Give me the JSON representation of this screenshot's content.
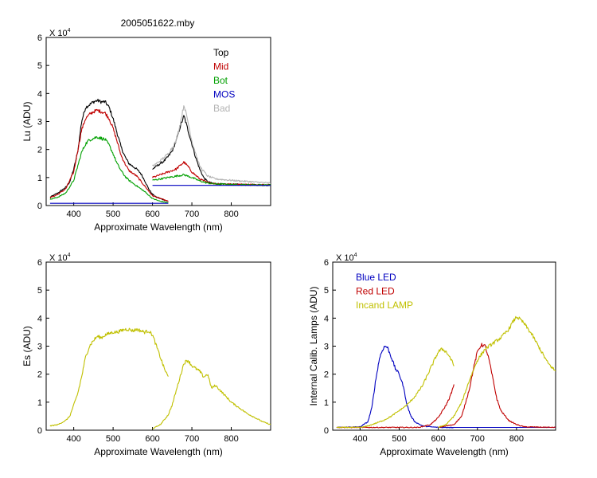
{
  "figure_title": "2005051622.mby",
  "chart_data": [
    {
      "id": "lu",
      "type": "line",
      "xlabel": "Approximate Wavelength (nm)",
      "ylabel": "Lu (ADU)",
      "multiplier": "X 10",
      "multiplier_exp": "4",
      "xlim": [
        330,
        900
      ],
      "ylim": [
        0,
        6
      ],
      "xticks": [
        400,
        500,
        600,
        700,
        800
      ],
      "xtick_labels": [
        "400",
        "500",
        "600",
        "700",
        "800"
      ],
      "yticks": [
        0,
        1,
        2,
        3,
        4,
        5,
        6
      ],
      "ytick_labels": [
        "0",
        "1",
        "2",
        "3",
        "4",
        "5",
        "6"
      ],
      "legend": "top-right",
      "series": [
        {
          "name": "Top",
          "color": "#000000",
          "segments": [
            {
              "x": [
                340,
                360,
                380,
                390,
                400,
                410,
                420,
                430,
                440,
                450,
                460,
                470,
                480,
                490,
                500,
                510,
                520,
                530,
                540,
                550,
                560,
                570,
                580,
                590,
                600,
                610,
                620,
                630,
                640
              ],
              "y": [
                0.3,
                0.45,
                0.65,
                0.85,
                1.3,
                1.9,
                3.0,
                3.5,
                3.6,
                3.7,
                3.75,
                3.7,
                3.7,
                3.5,
                3.1,
                2.6,
                2.1,
                1.75,
                1.5,
                1.4,
                1.3,
                1.15,
                0.9,
                0.6,
                0.4,
                0.3,
                0.25,
                0.2,
                0.15
              ]
            },
            {
              "x": [
                600,
                610,
                620,
                630,
                640,
                650,
                660,
                670,
                680,
                690,
                700,
                710,
                720,
                730,
                740,
                750,
                760,
                780,
                800,
                820,
                840,
                860,
                880,
                900
              ],
              "y": [
                1.3,
                1.4,
                1.5,
                1.6,
                1.75,
                1.95,
                2.3,
                2.8,
                3.2,
                2.7,
                2.2,
                1.7,
                1.3,
                1.0,
                0.85,
                0.8,
                0.78,
                0.76,
                0.75,
                0.75,
                0.74,
                0.74,
                0.73,
                0.73
              ]
            }
          ]
        },
        {
          "name": "Mid",
          "color": "#c00000",
          "segments": [
            {
              "x": [
                340,
                360,
                380,
                400,
                420,
                430,
                440,
                450,
                460,
                470,
                480,
                490,
                500,
                510,
                520,
                530,
                540,
                560,
                580,
                600,
                620,
                640
              ],
              "y": [
                0.28,
                0.4,
                0.6,
                1.2,
                2.7,
                3.1,
                3.25,
                3.35,
                3.4,
                3.35,
                3.3,
                3.1,
                2.75,
                2.3,
                1.8,
                1.5,
                1.25,
                1.05,
                0.7,
                0.35,
                0.25,
                0.15
              ]
            },
            {
              "x": [
                600,
                620,
                640,
                660,
                680,
                690,
                700,
                720,
                740,
                760,
                800,
                850,
                900
              ],
              "y": [
                1.0,
                1.1,
                1.2,
                1.3,
                1.55,
                1.4,
                1.2,
                0.95,
                0.82,
                0.78,
                0.76,
                0.75,
                0.74
              ]
            }
          ]
        },
        {
          "name": "Bot",
          "color": "#00a000",
          "segments": [
            {
              "x": [
                340,
                360,
                380,
                400,
                420,
                430,
                440,
                450,
                460,
                470,
                480,
                490,
                500,
                510,
                520,
                530,
                540,
                560,
                580,
                600,
                620,
                640
              ],
              "y": [
                0.22,
                0.3,
                0.45,
                0.9,
                1.9,
                2.2,
                2.35,
                2.4,
                2.45,
                2.4,
                2.35,
                2.15,
                1.85,
                1.5,
                1.25,
                1.05,
                0.9,
                0.7,
                0.5,
                0.25,
                0.15,
                0.1
              ]
            },
            {
              "x": [
                600,
                620,
                640,
                660,
                680,
                700,
                720,
                740,
                760,
                800,
                850,
                900
              ],
              "y": [
                0.9,
                0.95,
                1.0,
                1.05,
                1.1,
                1.0,
                0.88,
                0.8,
                0.77,
                0.75,
                0.74,
                0.73
              ]
            }
          ]
        },
        {
          "name": "MOS",
          "color": "#0000c0",
          "segments": [
            {
              "x": [
                340,
                640
              ],
              "y": [
                0.08,
                0.08
              ]
            },
            {
              "x": [
                600,
                900
              ],
              "y": [
                0.72,
                0.72
              ]
            }
          ]
        },
        {
          "name": "Bad",
          "color": "#b4b4b4",
          "segments": [
            {
              "x": [
                600,
                620,
                640,
                660,
                670,
                680,
                690,
                700,
                720,
                740,
                760,
                800,
                850,
                900
              ],
              "y": [
                1.4,
                1.6,
                1.85,
                2.3,
                2.9,
                3.6,
                3.0,
                2.3,
                1.4,
                1.05,
                0.95,
                0.9,
                0.85,
                0.8
              ]
            }
          ]
        }
      ]
    },
    {
      "id": "es",
      "type": "line",
      "xlabel": "Approximate Wavelength (nm)",
      "ylabel": "Es (ADU)",
      "multiplier": "X 10",
      "multiplier_exp": "4",
      "xlim": [
        330,
        900
      ],
      "ylim": [
        0,
        6
      ],
      "xticks": [
        400,
        500,
        600,
        700,
        800
      ],
      "xtick_labels": [
        "400",
        "500",
        "600",
        "700",
        "800"
      ],
      "yticks": [
        0,
        1,
        2,
        3,
        4,
        5,
        6
      ],
      "ytick_labels": [
        "0",
        "1",
        "2",
        "3",
        "4",
        "5",
        "6"
      ],
      "series": [
        {
          "name": "",
          "color": "#c0c000",
          "segments": [
            {
              "x": [
                340,
                360,
                380,
                390,
                400,
                410,
                420,
                430,
                440,
                450,
                460,
                470,
                480,
                490,
                500,
                510,
                520,
                530,
                540,
                550,
                560,
                570,
                580,
                590,
                600,
                610,
                620,
                630,
                640
              ],
              "y": [
                0.15,
                0.2,
                0.35,
                0.5,
                0.9,
                1.3,
                1.9,
                2.6,
                3.0,
                3.2,
                3.35,
                3.3,
                3.4,
                3.45,
                3.5,
                3.5,
                3.55,
                3.6,
                3.6,
                3.55,
                3.6,
                3.55,
                3.5,
                3.55,
                3.4,
                3.0,
                2.6,
                2.2,
                1.9
              ]
            },
            {
              "x": [
                600,
                620,
                640,
                650,
                660,
                670,
                680,
                690,
                700,
                710,
                720,
                730,
                740,
                750,
                760,
                780,
                800,
                820,
                840,
                860,
                880,
                900
              ],
              "y": [
                0.05,
                0.2,
                0.55,
                0.9,
                1.4,
                1.9,
                2.4,
                2.5,
                2.3,
                2.2,
                2.1,
                1.9,
                2.0,
                1.5,
                1.6,
                1.3,
                1.0,
                0.8,
                0.6,
                0.45,
                0.3,
                0.2
              ]
            }
          ]
        }
      ]
    },
    {
      "id": "calib",
      "type": "line",
      "xlabel": "Approximate Wavelength (nm)",
      "ylabel": "Internal Calib. Lamps (ADU)",
      "multiplier": "X 10",
      "multiplier_exp": "4",
      "xlim": [
        330,
        900
      ],
      "ylim": [
        0,
        6
      ],
      "xticks": [
        400,
        500,
        600,
        700,
        800
      ],
      "xtick_labels": [
        "400",
        "500",
        "600",
        "700",
        "800"
      ],
      "yticks": [
        0,
        1,
        2,
        3,
        4,
        5,
        6
      ],
      "ytick_labels": [
        "0",
        "1",
        "2",
        "3",
        "4",
        "5",
        "6"
      ],
      "legend": "top-left",
      "series": [
        {
          "name": "Blue LED",
          "color": "#0000c0",
          "segments": [
            {
              "x": [
                340,
                400,
                420,
                430,
                440,
                450,
                460,
                465,
                470,
                480,
                490,
                500,
                510,
                520,
                530,
                540,
                560,
                580,
                600,
                640
              ],
              "y": [
                0.1,
                0.12,
                0.3,
                0.8,
                1.8,
                2.6,
                2.95,
                3.0,
                2.95,
                2.6,
                2.2,
                2.0,
                1.6,
                0.9,
                0.5,
                0.3,
                0.15,
                0.12,
                0.1,
                0.1
              ]
            },
            {
              "x": [
                600,
                900
              ],
              "y": [
                0.1,
                0.1
              ]
            }
          ]
        },
        {
          "name": "Red LED",
          "color": "#c00000",
          "segments": [
            {
              "x": [
                340,
                550,
                580,
                600,
                620,
                630,
                640
              ],
              "y": [
                0.1,
                0.1,
                0.2,
                0.45,
                0.9,
                1.2,
                1.6
              ]
            },
            {
              "x": [
                600,
                640,
                660,
                680,
                690,
                700,
                710,
                720,
                730,
                740,
                750,
                760,
                780,
                800,
                820,
                900
              ],
              "y": [
                0.1,
                0.2,
                0.5,
                1.5,
                2.2,
                2.8,
                3.05,
                3.0,
                2.5,
                1.8,
                1.1,
                0.7,
                0.35,
                0.2,
                0.12,
                0.1
              ]
            }
          ]
        },
        {
          "name": "Incand LAMP",
          "color": "#c0c000",
          "segments": [
            {
              "x": [
                340,
                400,
                420,
                440,
                460,
                480,
                500,
                520,
                540,
                560,
                580,
                600,
                610,
                620,
                630,
                640
              ],
              "y": [
                0.1,
                0.1,
                0.15,
                0.25,
                0.35,
                0.5,
                0.7,
                0.9,
                1.2,
                1.6,
                2.2,
                2.8,
                2.9,
                2.8,
                2.6,
                2.3
              ]
            },
            {
              "x": [
                600,
                620,
                640,
                660,
                680,
                700,
                720,
                740,
                760,
                780,
                790,
                800,
                810,
                820,
                840,
                860,
                880,
                900
              ],
              "y": [
                0.1,
                0.2,
                0.5,
                1.0,
                1.8,
                2.5,
                2.9,
                3.1,
                3.3,
                3.6,
                3.85,
                4.05,
                3.95,
                3.8,
                3.4,
                2.9,
                2.4,
                2.1
              ]
            }
          ]
        }
      ]
    }
  ]
}
